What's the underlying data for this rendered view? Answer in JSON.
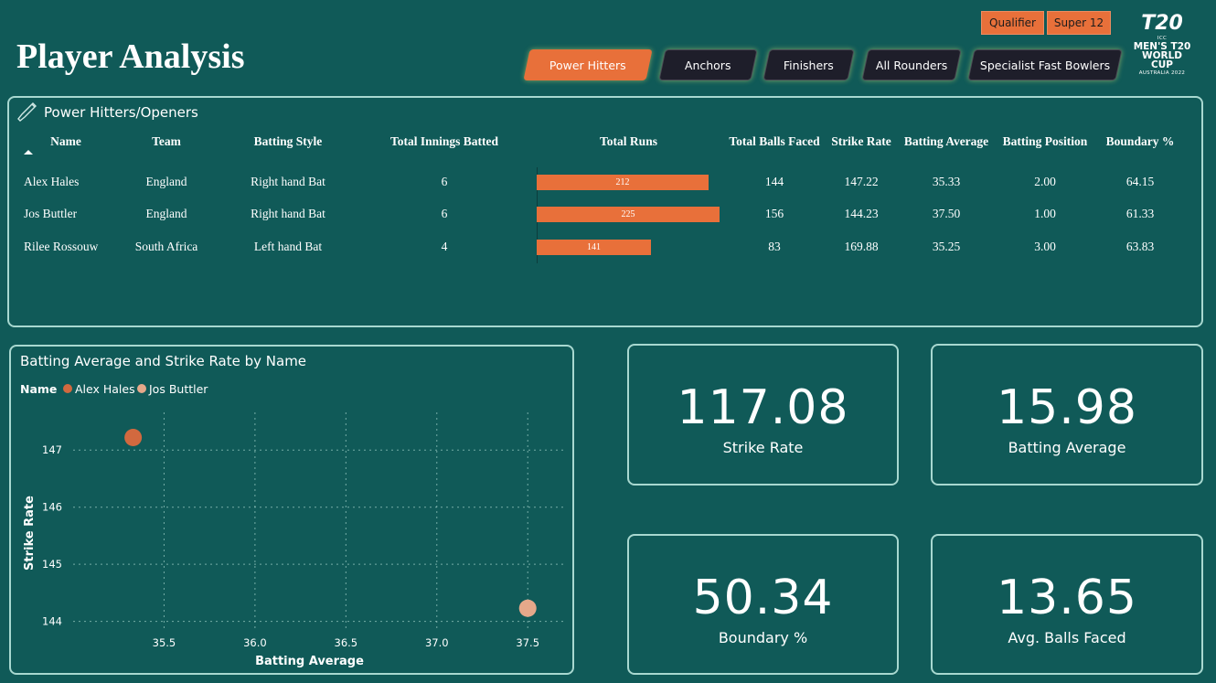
{
  "header": {
    "title": "Player Analysis",
    "stage_buttons": [
      "Qualifier",
      "Super 12"
    ],
    "tabs": [
      "Power Hitters",
      "Anchors",
      "Finishers",
      "All Rounders",
      "Specialist Fast Bowlers"
    ],
    "active_tab": "Power Hitters",
    "logo": {
      "line1": "ICC",
      "line2": "MEN'S T20",
      "line3": "WORLD CUP",
      "line4": "AUSTRALIA 2022"
    }
  },
  "table": {
    "title": "Power Hitters/Openers",
    "icon": "cricket-bat-icon",
    "columns": [
      "Name",
      "Team",
      "Batting Style",
      "Total Innings Batted",
      "Total Runs",
      "Total Balls Faced",
      "Strike Rate",
      "Batting Average",
      "Batting Position",
      "Boundary %"
    ],
    "rows": [
      {
        "name": "Alex Hales",
        "team": "England",
        "style": "Right hand Bat",
        "innings": "6",
        "runs": 212,
        "balls": "144",
        "sr": "147.22",
        "avg": "35.33",
        "pos": "2.00",
        "boundary": "64.15"
      },
      {
        "name": "Jos Buttler",
        "team": "England",
        "style": "Right hand Bat",
        "innings": "6",
        "runs": 225,
        "balls": "156",
        "sr": "144.23",
        "avg": "37.50",
        "pos": "1.00",
        "boundary": "61.33"
      },
      {
        "name": "Rilee Rossouw",
        "team": "South Africa",
        "style": "Left hand Bat",
        "innings": "4",
        "runs": 141,
        "balls": "83",
        "sr": "169.88",
        "avg": "35.25",
        "pos": "3.00",
        "boundary": "63.83"
      }
    ],
    "runs_max": 225
  },
  "chart_data": {
    "type": "scatter",
    "title": "Batting Average and Strike Rate by Name",
    "legend_title": "Name",
    "legend_placement": "top-left",
    "xlabel": "Batting Average",
    "ylabel": "Strike Rate",
    "xlim": [
      35.0,
      37.7
    ],
    "ylim": [
      143.85,
      147.5
    ],
    "xticks": [
      35.5,
      36.0,
      36.5,
      37.0,
      37.5
    ],
    "xtick_labels": [
      "35.5",
      "36.0",
      "36.5",
      "37.0",
      "37.5"
    ],
    "yticks": [
      144,
      145,
      146,
      147
    ],
    "ytick_labels": [
      "144",
      "145",
      "146",
      "147"
    ],
    "grid": true,
    "series": [
      {
        "name": "Alex Hales",
        "color": "#d2693f",
        "points": [
          {
            "x": 35.33,
            "y": 147.22
          }
        ]
      },
      {
        "name": "Jos Buttler",
        "color": "#e5a88a",
        "points": [
          {
            "x": 37.5,
            "y": 144.23
          }
        ]
      }
    ]
  },
  "kpis": [
    {
      "value": "117.08",
      "label": "Strike Rate"
    },
    {
      "value": "15.98",
      "label": "Batting Average"
    },
    {
      "value": "50.34",
      "label": "Boundary %"
    },
    {
      "value": "13.65",
      "label": "Avg. Balls Faced"
    }
  ],
  "colors": {
    "background": "#105a58",
    "accent": "#e8703a",
    "border": "#a8d8d0",
    "tab_dark": "#1e1e2a"
  }
}
